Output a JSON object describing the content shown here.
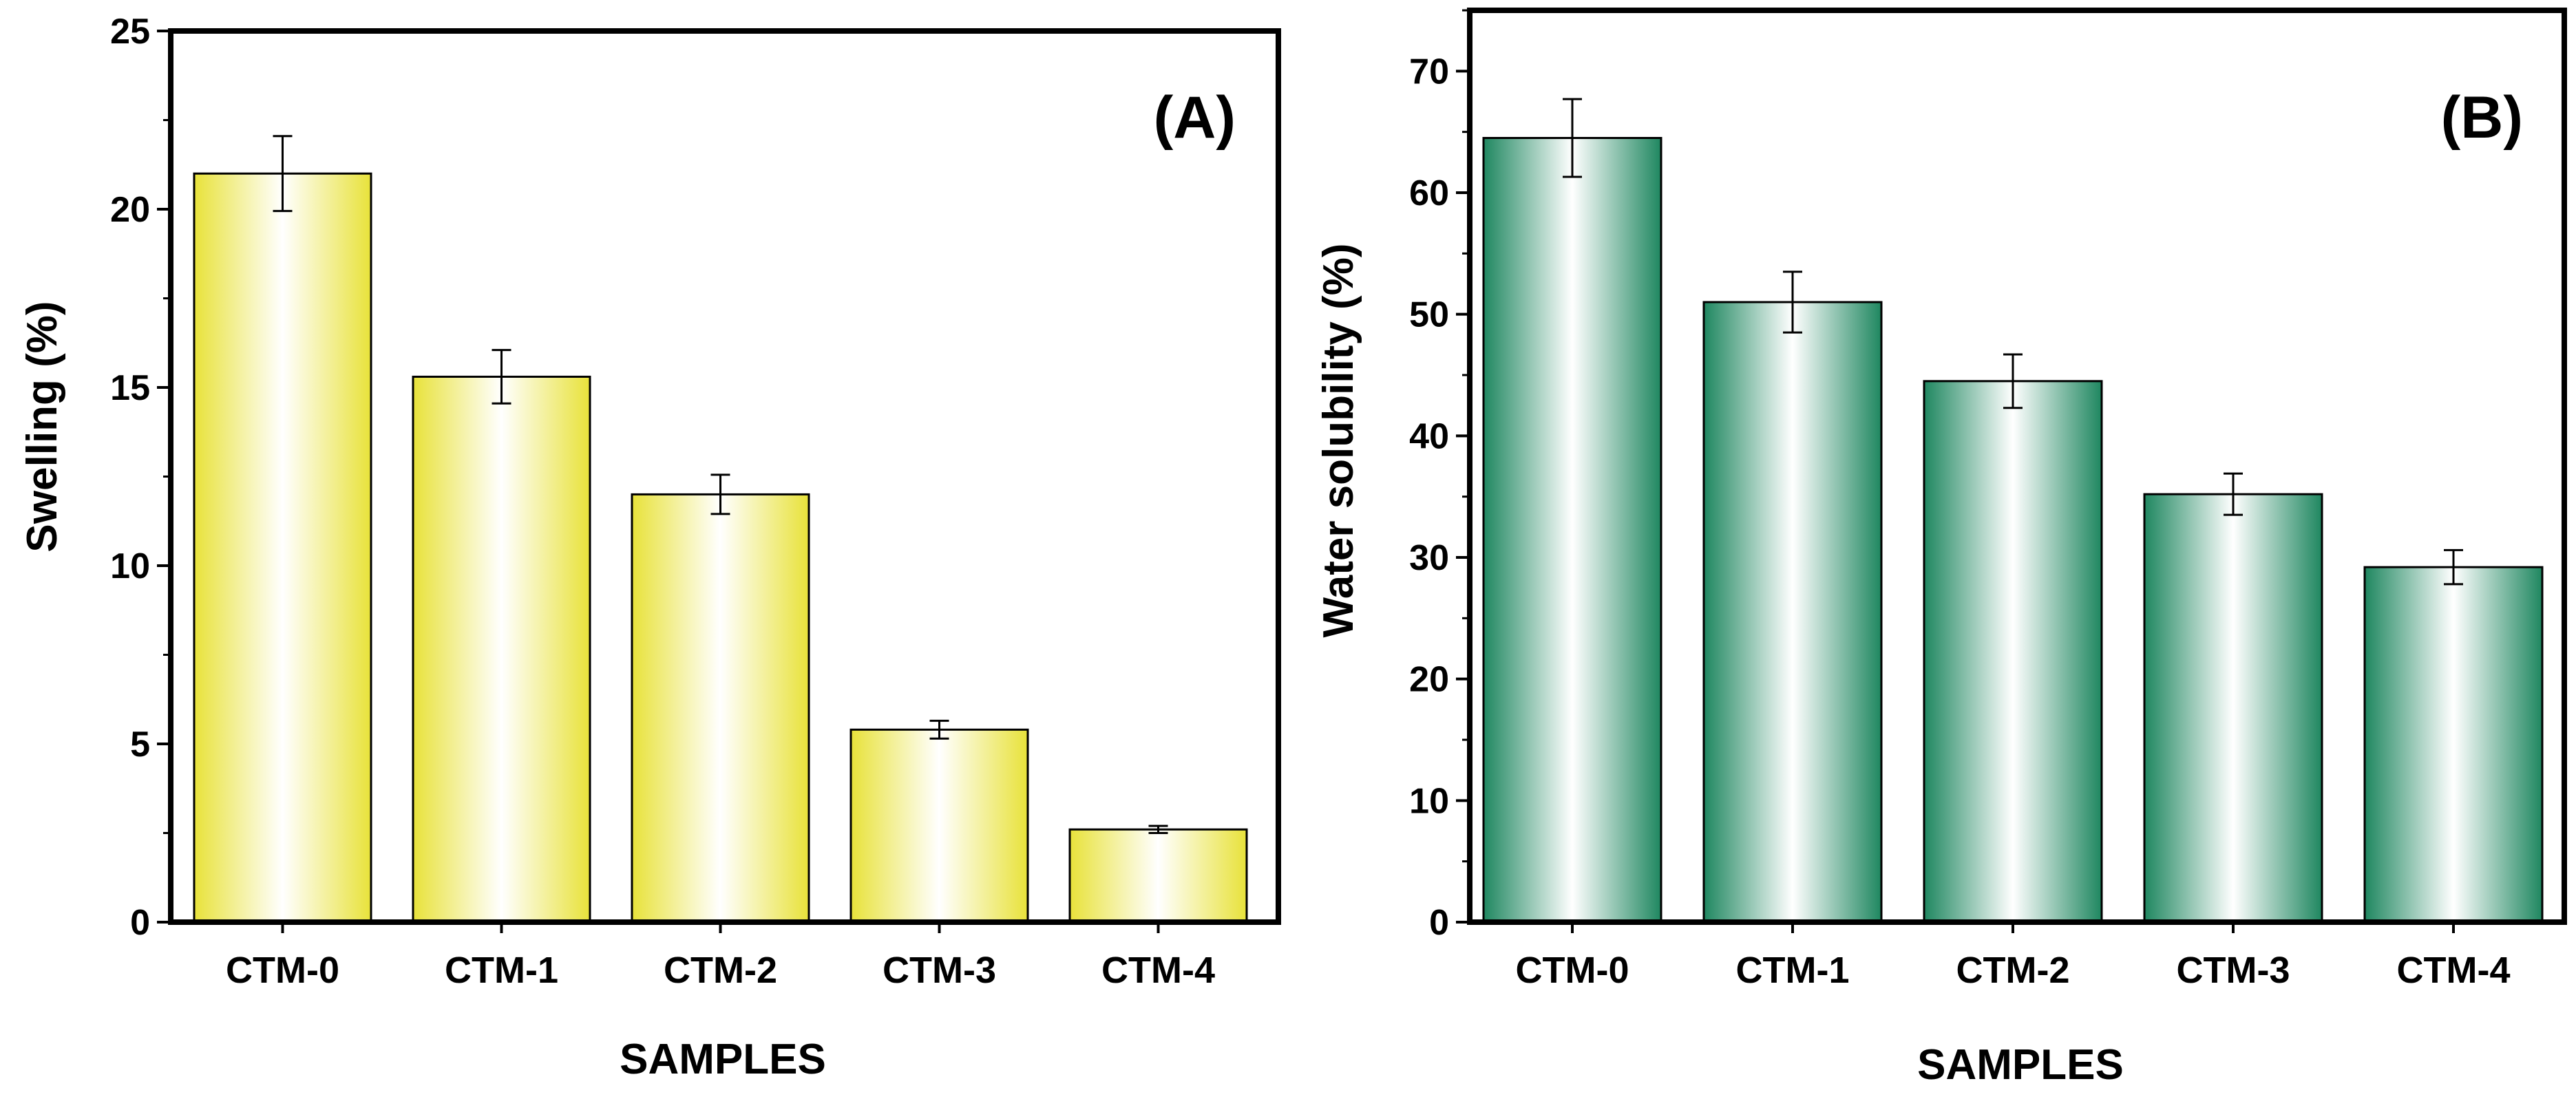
{
  "chart_data": [
    {
      "type": "bar",
      "panel_label": "(A)",
      "categories": [
        "CTM-0",
        "CTM-1",
        "CTM-2",
        "CTM-3",
        "CTM-4"
      ],
      "values": [
        21.0,
        15.3,
        12.0,
        5.4,
        2.6
      ],
      "errors": [
        1.05,
        0.75,
        0.55,
        0.25,
        0.1
      ],
      "xlabel": "SAMPLES",
      "ylabel": "Swelling (%)",
      "ylim": [
        0,
        25
      ],
      "yticks": [
        "0",
        "5",
        "10",
        "15",
        "20",
        "25"
      ],
      "bar_color": "#e8e23a",
      "grid": false,
      "legend": "none"
    },
    {
      "type": "bar",
      "panel_label": "(B)",
      "categories": [
        "CTM-0",
        "CTM-1",
        "CTM-2",
        "CTM-3",
        "CTM-4"
      ],
      "values": [
        64.5,
        51.0,
        44.5,
        35.2,
        29.2
      ],
      "errors": [
        3.2,
        2.5,
        2.2,
        1.7,
        1.4
      ],
      "xlabel": "SAMPLES",
      "ylabel": "Water solubility (%)",
      "ylim": [
        0,
        75
      ],
      "yticks": [
        "0",
        "10",
        "20",
        "30",
        "40",
        "50",
        "60",
        "70"
      ],
      "bar_color": "#1f8760",
      "grid": false,
      "legend": "none"
    }
  ]
}
